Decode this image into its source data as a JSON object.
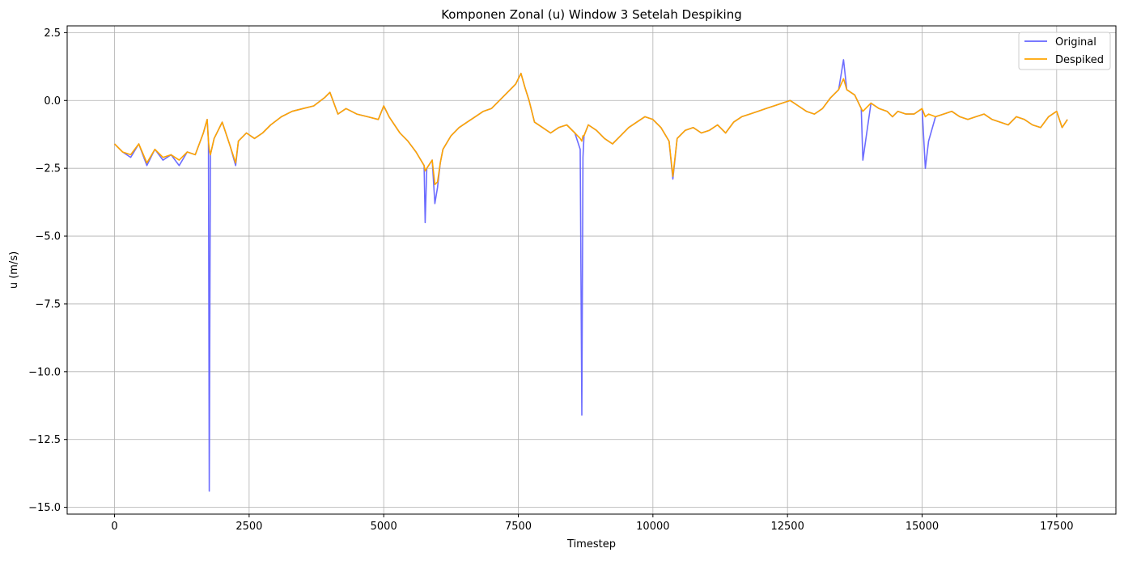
{
  "chart_data": {
    "type": "line",
    "title": "Komponen Zonal (u) Window 3 Setelah Despiking",
    "xlabel": "Timestep",
    "ylabel": "u (m/s)",
    "xlim": [
      -880,
      18600
    ],
    "ylim": [
      -15.25,
      2.75
    ],
    "grid": true,
    "legend_position": "top-right",
    "x_ticks": [
      0,
      2500,
      5000,
      7500,
      10000,
      12500,
      15000,
      17500
    ],
    "x_tick_labels": [
      "0",
      "2500",
      "5000",
      "7500",
      "10000",
      "12500",
      "15000",
      "17500"
    ],
    "y_ticks": [
      2.5,
      0.0,
      -2.5,
      -5.0,
      -7.5,
      -10.0,
      -12.5,
      -15.0
    ],
    "y_tick_labels": [
      "2.5",
      "0.0",
      "−2.5",
      "−5.0",
      "−7.5",
      "−10.0",
      "−12.5",
      "−15.0"
    ],
    "series": [
      {
        "name": "Original",
        "color": "#6464ff",
        "x": [
          0,
          150,
          300,
          450,
          600,
          750,
          900,
          1050,
          1200,
          1350,
          1500,
          1650,
          1720,
          1745,
          1760,
          1780,
          1850,
          2000,
          2150,
          2250,
          2300,
          2450,
          2600,
          2750,
          2900,
          3100,
          3300,
          3500,
          3700,
          3900,
          4000,
          4150,
          4300,
          4500,
          4700,
          4900,
          5000,
          5100,
          5200,
          5300,
          5450,
          5600,
          5750,
          5770,
          5800,
          5900,
          5950,
          6000,
          6050,
          6100,
          6250,
          6400,
          6550,
          6700,
          6850,
          7000,
          7150,
          7300,
          7450,
          7550,
          7620,
          7700,
          7800,
          7950,
          8100,
          8250,
          8400,
          8550,
          8650,
          8680,
          8700,
          8720,
          8800,
          8950,
          9100,
          9250,
          9400,
          9550,
          9700,
          9850,
          10000,
          10150,
          10300,
          10370,
          10450,
          10600,
          10750,
          10900,
          11050,
          11200,
          11350,
          11500,
          11650,
          11800,
          11950,
          12100,
          12250,
          12400,
          12550,
          12700,
          12850,
          13000,
          13150,
          13300,
          13450,
          13540,
          13600,
          13750,
          13870,
          13900,
          14050,
          14200,
          14350,
          14450,
          14550,
          14700,
          14850,
          15000,
          15060,
          15120,
          15250,
          15400,
          15550,
          15700,
          15850,
          16000,
          16150,
          16300,
          16450,
          16600,
          16750,
          16900,
          17050,
          17200,
          17350,
          17500,
          17600,
          17700
        ],
        "y": [
          -1.6,
          -1.9,
          -2.1,
          -1.6,
          -2.4,
          -1.8,
          -2.2,
          -2.0,
          -2.4,
          -1.9,
          -2.0,
          -1.2,
          -0.7,
          -1.5,
          -14.4,
          -2.0,
          -1.4,
          -0.8,
          -1.7,
          -2.4,
          -1.5,
          -1.2,
          -1.4,
          -1.2,
          -0.9,
          -0.6,
          -0.4,
          -0.3,
          -0.2,
          0.1,
          0.3,
          -0.5,
          -0.3,
          -0.5,
          -0.6,
          -0.7,
          -0.2,
          -0.6,
          -0.9,
          -1.2,
          -1.5,
          -1.9,
          -2.4,
          -4.5,
          -2.5,
          -2.2,
          -3.8,
          -3.2,
          -2.3,
          -1.8,
          -1.3,
          -1.0,
          -0.8,
          -0.6,
          -0.4,
          -0.3,
          0.0,
          0.3,
          0.6,
          1.0,
          0.5,
          0.0,
          -0.8,
          -1.0,
          -1.2,
          -1.0,
          -0.9,
          -1.2,
          -1.8,
          -11.6,
          -2.1,
          -1.3,
          -0.9,
          -1.1,
          -1.4,
          -1.6,
          -1.3,
          -1.0,
          -0.8,
          -0.6,
          -0.7,
          -1.0,
          -1.5,
          -2.9,
          -1.4,
          -1.1,
          -1.0,
          -1.2,
          -1.1,
          -0.9,
          -1.2,
          -0.8,
          -0.6,
          -0.5,
          -0.4,
          -0.3,
          -0.2,
          -0.1,
          0.0,
          -0.2,
          -0.4,
          -0.5,
          -0.3,
          0.1,
          0.4,
          1.5,
          0.4,
          0.2,
          -0.3,
          -2.2,
          -0.1,
          -0.3,
          -0.4,
          -0.6,
          -0.4,
          -0.5,
          -0.5,
          -0.3,
          -2.5,
          -1.5,
          -0.6,
          -0.5,
          -0.4,
          -0.6,
          -0.7,
          -0.6,
          -0.5,
          -0.7,
          -0.8,
          -0.9,
          -0.6,
          -0.7,
          -0.9,
          -1.0,
          -0.6,
          -0.4,
          -1.0,
          -0.7
        ]
      },
      {
        "name": "Despiked",
        "color": "#ffa500",
        "x": [
          0,
          150,
          300,
          450,
          600,
          750,
          900,
          1050,
          1200,
          1350,
          1500,
          1650,
          1720,
          1745,
          1760,
          1780,
          1850,
          2000,
          2150,
          2250,
          2300,
          2450,
          2600,
          2750,
          2900,
          3100,
          3300,
          3500,
          3700,
          3900,
          4000,
          4150,
          4300,
          4500,
          4700,
          4900,
          5000,
          5100,
          5200,
          5300,
          5450,
          5600,
          5750,
          5770,
          5800,
          5900,
          5950,
          6000,
          6050,
          6100,
          6250,
          6400,
          6550,
          6700,
          6850,
          7000,
          7150,
          7300,
          7450,
          7550,
          7620,
          7700,
          7800,
          7950,
          8100,
          8250,
          8400,
          8550,
          8650,
          8680,
          8700,
          8720,
          8800,
          8950,
          9100,
          9250,
          9400,
          9550,
          9700,
          9850,
          10000,
          10150,
          10300,
          10370,
          10450,
          10600,
          10750,
          10900,
          11050,
          11200,
          11350,
          11500,
          11650,
          11800,
          11950,
          12100,
          12250,
          12400,
          12550,
          12700,
          12850,
          13000,
          13150,
          13300,
          13450,
          13540,
          13600,
          13750,
          13870,
          13900,
          14050,
          14200,
          14350,
          14450,
          14550,
          14700,
          14850,
          15000,
          15060,
          15120,
          15250,
          15400,
          15550,
          15700,
          15850,
          16000,
          16150,
          16300,
          16450,
          16600,
          16750,
          16900,
          17050,
          17200,
          17350,
          17500,
          17600,
          17700
        ],
        "y": [
          -1.6,
          -1.9,
          -2.0,
          -1.6,
          -2.3,
          -1.8,
          -2.1,
          -2.0,
          -2.2,
          -1.9,
          -2.0,
          -1.2,
          -0.7,
          -1.5,
          -1.8,
          -2.0,
          -1.4,
          -0.8,
          -1.7,
          -2.3,
          -1.5,
          -1.2,
          -1.4,
          -1.2,
          -0.9,
          -0.6,
          -0.4,
          -0.3,
          -0.2,
          0.1,
          0.3,
          -0.5,
          -0.3,
          -0.5,
          -0.6,
          -0.7,
          -0.2,
          -0.6,
          -0.9,
          -1.2,
          -1.5,
          -1.9,
          -2.4,
          -2.6,
          -2.5,
          -2.2,
          -3.1,
          -3.0,
          -2.3,
          -1.8,
          -1.3,
          -1.0,
          -0.8,
          -0.6,
          -0.4,
          -0.3,
          0.0,
          0.3,
          0.6,
          1.0,
          0.5,
          0.0,
          -0.8,
          -1.0,
          -1.2,
          -1.0,
          -0.9,
          -1.2,
          -1.4,
          -1.5,
          -1.3,
          -1.3,
          -0.9,
          -1.1,
          -1.4,
          -1.6,
          -1.3,
          -1.0,
          -0.8,
          -0.6,
          -0.7,
          -1.0,
          -1.5,
          -2.8,
          -1.4,
          -1.1,
          -1.0,
          -1.2,
          -1.1,
          -0.9,
          -1.2,
          -0.8,
          -0.6,
          -0.5,
          -0.4,
          -0.3,
          -0.2,
          -0.1,
          0.0,
          -0.2,
          -0.4,
          -0.5,
          -0.3,
          0.1,
          0.4,
          0.8,
          0.4,
          0.2,
          -0.3,
          -0.4,
          -0.1,
          -0.3,
          -0.4,
          -0.6,
          -0.4,
          -0.5,
          -0.5,
          -0.3,
          -0.6,
          -0.5,
          -0.6,
          -0.5,
          -0.4,
          -0.6,
          -0.7,
          -0.6,
          -0.5,
          -0.7,
          -0.8,
          -0.9,
          -0.6,
          -0.7,
          -0.9,
          -1.0,
          -0.6,
          -0.4,
          -1.0,
          -0.7
        ]
      }
    ]
  }
}
